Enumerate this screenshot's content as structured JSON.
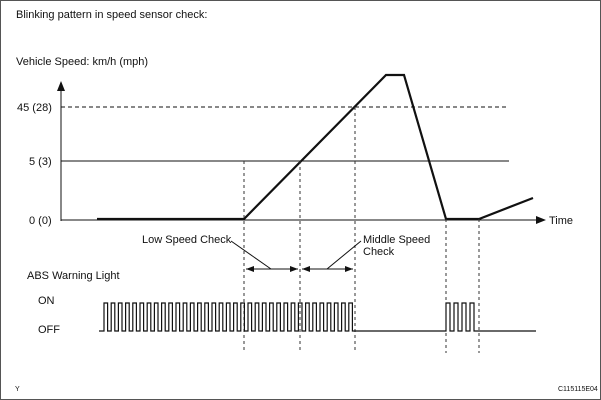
{
  "title": "Blinking pattern in speed sensor check:",
  "speed_axis_label": "Vehicle Speed: km/h (mph)",
  "speed_ticks": [
    "45 (28)",
    "5 (3)",
    "0 (0)"
  ],
  "time_label": "Time",
  "low_speed_check": "Low Speed Check",
  "middle_speed_check_line1": "Middle Speed",
  "middle_speed_check_line2": "Check",
  "abs_label": "ABS Warning Light",
  "on_label": "ON",
  "off_label": "OFF",
  "corner_left": "Y",
  "corner_right": "C115115E04"
}
